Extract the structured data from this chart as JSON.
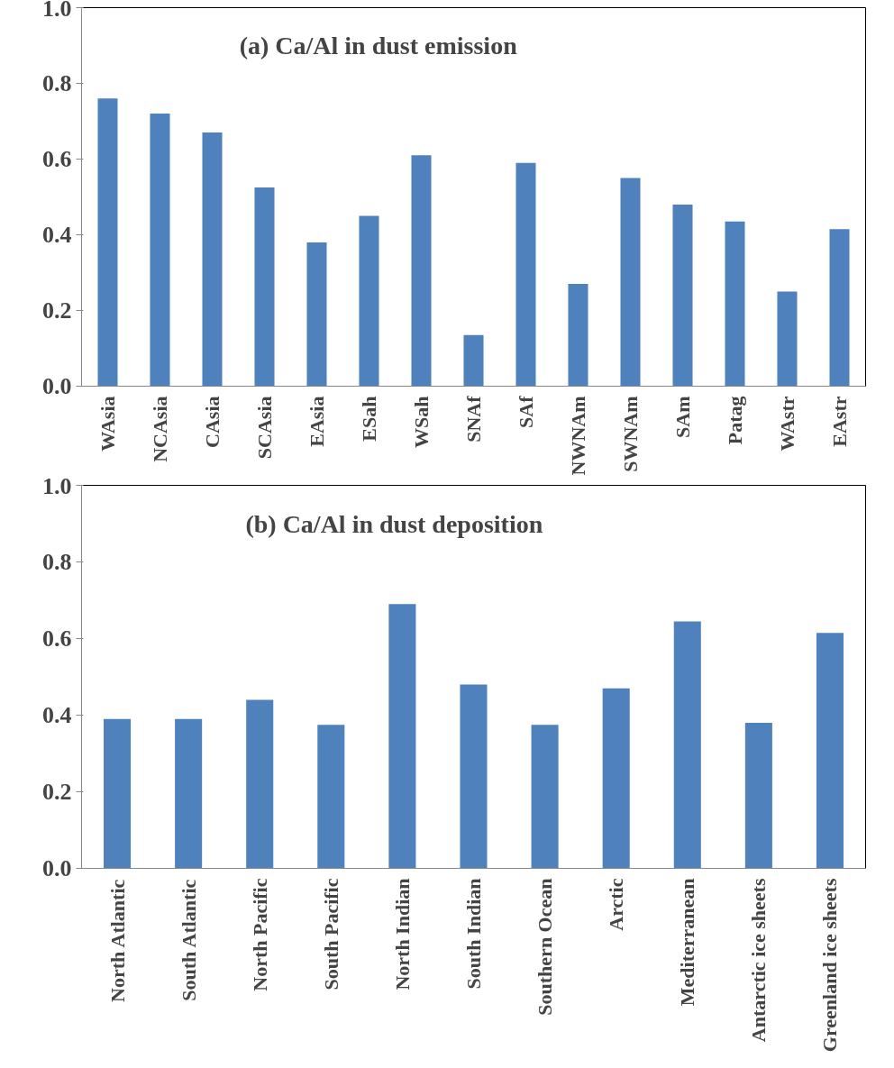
{
  "chart_data": [
    {
      "type": "bar",
      "title": "(a) Ca/Al in dust emission",
      "categories": [
        "WAsia",
        "NCAsia",
        "CAsia",
        "SCAsia",
        "EAsia",
        "ESah",
        "WSah",
        "SNAf",
        "SAf",
        "NWNAm",
        "SWNAm",
        "SAm",
        "Patag",
        "WAstr",
        "EAstr"
      ],
      "values": [
        0.76,
        0.72,
        0.67,
        0.525,
        0.38,
        0.45,
        0.61,
        0.135,
        0.59,
        0.27,
        0.55,
        0.48,
        0.435,
        0.25,
        0.415
      ],
      "color": "#4f81bd",
      "ylim": [
        0,
        1.0
      ],
      "yticks": [
        {
          "value": 0,
          "label": "0.0"
        },
        {
          "value": 0.2,
          "label": "0.2"
        },
        {
          "value": 0.4,
          "label": "0.4"
        },
        {
          "value": 0.6,
          "label": "0.6"
        },
        {
          "value": 0.8,
          "label": "0.8"
        },
        {
          "value": 1.0,
          "label": "1.0"
        }
      ],
      "grid": false
    },
    {
      "type": "bar",
      "title": "(b) Ca/Al in dust deposition",
      "categories": [
        "North Atlantic",
        "South Atlantic",
        "North Pacific",
        "South Pacific",
        "North Indian",
        "South Indian",
        "Southern Ocean",
        "Arctic",
        "Mediterranean",
        "Antarctic ice sheets",
        "Greenland ice sheets"
      ],
      "values": [
        0.39,
        0.39,
        0.44,
        0.375,
        0.69,
        0.48,
        0.375,
        0.47,
        0.645,
        0.38,
        0.615
      ],
      "color": "#4f81bd",
      "ylim": [
        0,
        1.0
      ],
      "yticks": [
        {
          "value": 0,
          "label": "0.0"
        },
        {
          "value": 0.2,
          "label": "0.2"
        },
        {
          "value": 0.4,
          "label": "0.4"
        },
        {
          "value": 0.6,
          "label": "0.6"
        },
        {
          "value": 0.8,
          "label": "0.8"
        },
        {
          "value": 1.0,
          "label": "1.0"
        }
      ],
      "grid": false
    }
  ]
}
